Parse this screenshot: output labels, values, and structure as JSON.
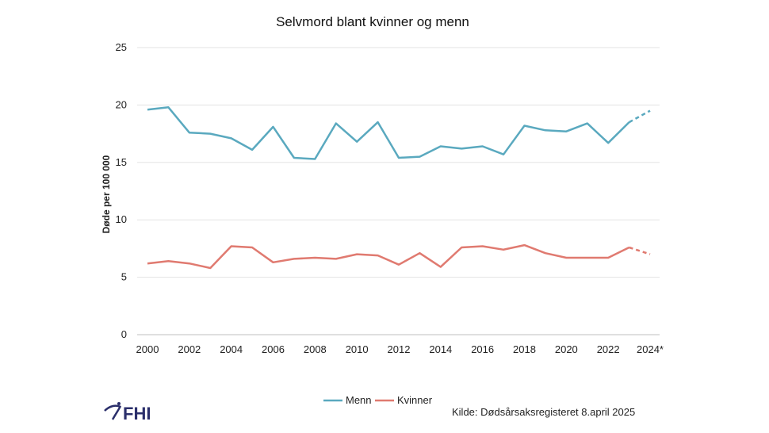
{
  "chart_data": {
    "type": "line",
    "title": "Selvmord blant kvinner og menn",
    "xlabel": "",
    "ylabel": "Døde per 100 000",
    "ylim": [
      0,
      25
    ],
    "yticks": [
      0,
      5,
      10,
      15,
      20,
      25
    ],
    "x": [
      2000,
      2001,
      2002,
      2003,
      2004,
      2005,
      2006,
      2007,
      2008,
      2009,
      2010,
      2011,
      2012,
      2013,
      2014,
      2015,
      2016,
      2017,
      2018,
      2019,
      2020,
      2021,
      2022,
      2023,
      2024
    ],
    "xtick_labels": [
      "2000",
      "2002",
      "2004",
      "2006",
      "2008",
      "2010",
      "2012",
      "2014",
      "2016",
      "2018",
      "2020",
      "2022",
      "2024*"
    ],
    "xtick_values": [
      2000,
      2002,
      2004,
      2006,
      2008,
      2010,
      2012,
      2014,
      2016,
      2018,
      2020,
      2022,
      2024
    ],
    "projected_from": 2023,
    "series": [
      {
        "name": "Menn",
        "color": "#5aa9bf",
        "values": [
          19.6,
          19.8,
          17.6,
          17.5,
          17.1,
          16.1,
          18.1,
          15.4,
          15.3,
          18.4,
          16.8,
          18.5,
          15.4,
          15.5,
          16.4,
          16.2,
          16.4,
          15.7,
          18.2,
          17.8,
          17.7,
          18.4,
          16.7,
          18.5,
          19.5
        ]
      },
      {
        "name": "Kvinner",
        "color": "#e07a70",
        "values": [
          6.2,
          6.4,
          6.2,
          5.8,
          7.7,
          7.6,
          6.3,
          6.6,
          6.7,
          6.6,
          7.0,
          6.9,
          6.1,
          7.1,
          5.9,
          7.6,
          7.7,
          7.4,
          7.8,
          7.1,
          6.7,
          6.7,
          6.7,
          7.6,
          7.0
        ]
      }
    ],
    "legend_position": "bottom-center",
    "source": "Kilde: Dødsårsaksregisteret 8.april 2025"
  },
  "logo": {
    "text": "FHI",
    "color": "#2b2f6b"
  }
}
